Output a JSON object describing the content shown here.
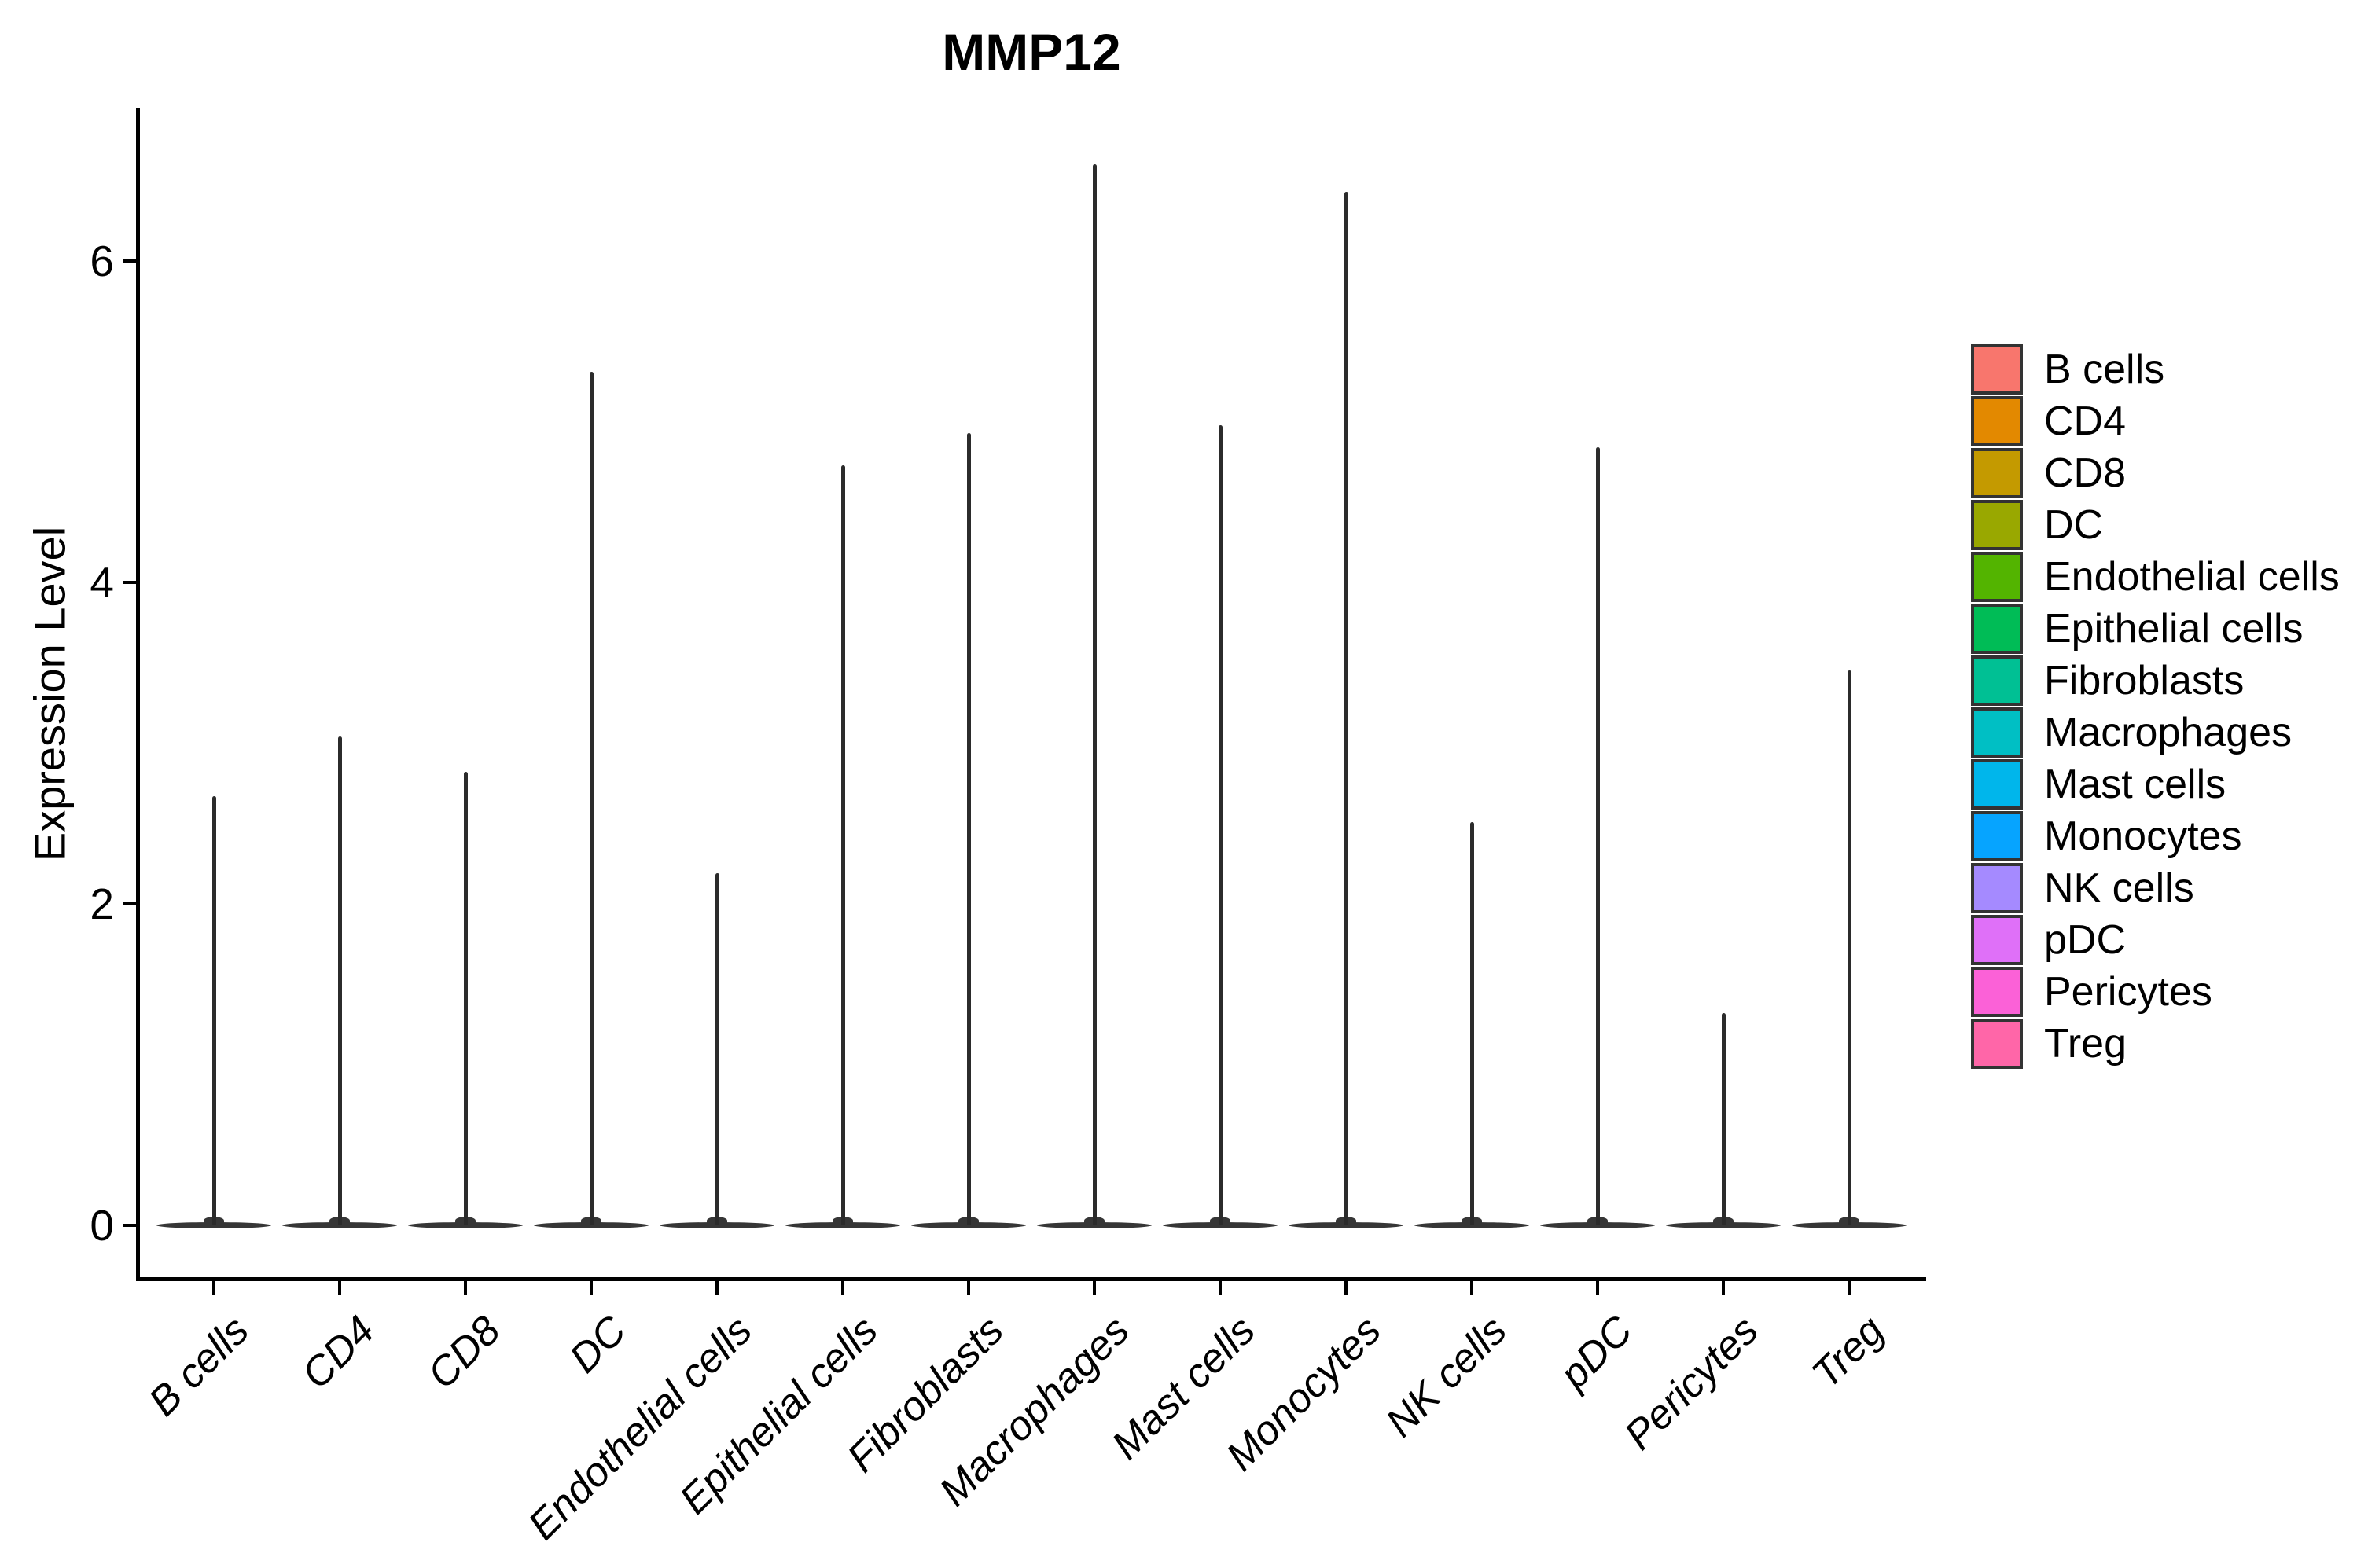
{
  "chart_data": {
    "type": "violin",
    "title": "MMP12",
    "xlabel": "",
    "ylabel": "Expression Level",
    "yticks": [
      0,
      2,
      4,
      6
    ],
    "ylim": [
      -0.33,
      6.94
    ],
    "grid": false,
    "legend_position": "right",
    "categories": [
      {
        "label": "B cells",
        "color": "#F8766D",
        "max_expression": 2.67
      },
      {
        "label": "CD4",
        "color": "#E38900",
        "max_expression": 3.04
      },
      {
        "label": "CD8",
        "color": "#C49A00",
        "max_expression": 2.82
      },
      {
        "label": "DC",
        "color": "#99A800",
        "max_expression": 5.31
      },
      {
        "label": "Endothelial cells",
        "color": "#53B400",
        "max_expression": 2.19
      },
      {
        "label": "Epithelial cells",
        "color": "#00BC56",
        "max_expression": 4.73
      },
      {
        "label": "Fibroblasts",
        "color": "#00C094",
        "max_expression": 4.93
      },
      {
        "label": "Macrophages",
        "color": "#00BFC4",
        "max_expression": 6.6
      },
      {
        "label": "Mast cells",
        "color": "#00B6EB",
        "max_expression": 4.98
      },
      {
        "label": "Monocytes",
        "color": "#06A4FF",
        "max_expression": 6.43
      },
      {
        "label": "NK cells",
        "color": "#A58AFF",
        "max_expression": 2.51
      },
      {
        "label": "pDC",
        "color": "#DF70F8",
        "max_expression": 4.84
      },
      {
        "label": "Pericytes",
        "color": "#FB61D7",
        "max_expression": 1.32
      },
      {
        "label": "Treg",
        "color": "#FF66A8",
        "max_expression": 3.45
      }
    ],
    "note": "Violin plot; each category shows a flat density mass at 0 with a thin spike up to its maximum expression value"
  }
}
